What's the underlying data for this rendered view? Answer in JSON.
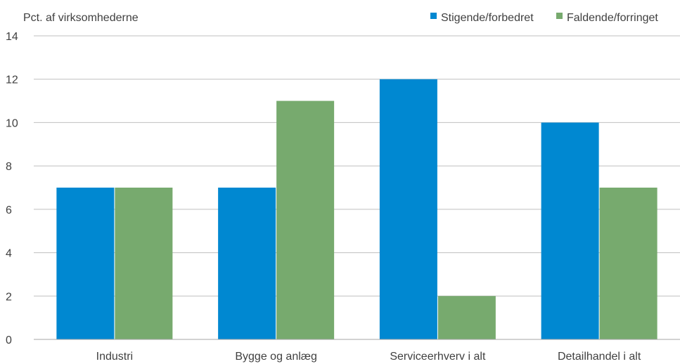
{
  "chart_data": {
    "type": "bar",
    "ylabel": "Pct. af virksomhederne",
    "categories": [
      "Industri",
      "Bygge og anlæg",
      "Serviceerhverv i alt",
      "Detailhandel i alt"
    ],
    "series": [
      {
        "name": "Stigende/forbedret",
        "values": [
          7,
          7,
          12,
          10
        ],
        "color": "#0088d1"
      },
      {
        "name": "Faldende/forringet",
        "values": [
          7,
          11,
          2,
          7
        ],
        "color": "#77aa6e"
      }
    ],
    "ylim": [
      0,
      14
    ],
    "yticks": [
      0,
      2,
      4,
      6,
      8,
      10,
      12,
      14
    ],
    "grid": true,
    "legend": "top-right"
  }
}
